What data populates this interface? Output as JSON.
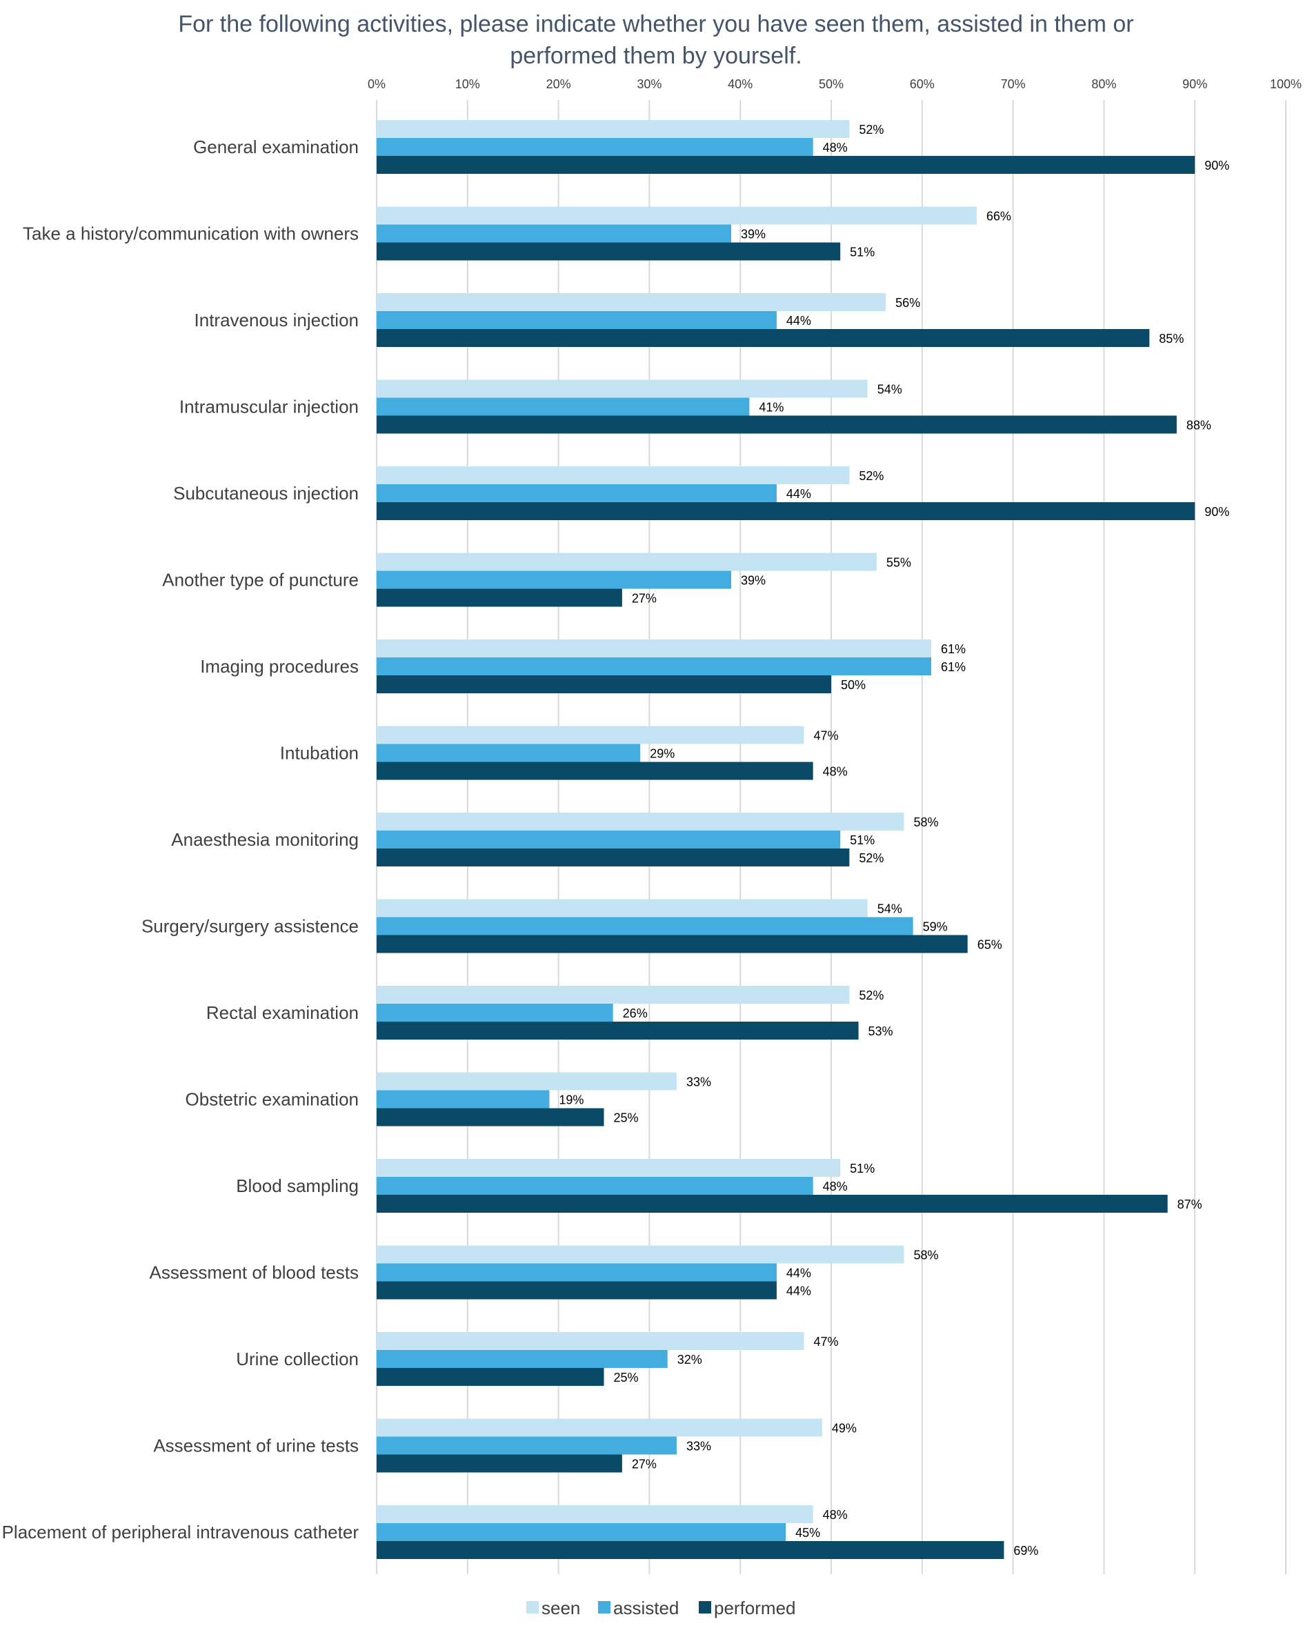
{
  "chart_data": {
    "type": "bar",
    "orientation": "horizontal",
    "title_lines": [
      "For the following activities, please indicate whether you have seen them, assisted in them or",
      "performed them by yourself."
    ],
    "xlabel": "",
    "ylabel": "",
    "xlim": [
      0,
      100
    ],
    "tick_values": [
      0,
      10,
      20,
      30,
      40,
      50,
      60,
      70,
      80,
      90,
      100
    ],
    "tick_labels": [
      "0%",
      "10%",
      "20%",
      "30%",
      "40%",
      "50%",
      "60%",
      "70%",
      "80%",
      "90%",
      "100%"
    ],
    "value_suffix": "%",
    "grid": true,
    "legend_position": "bottom",
    "categories": [
      "General examination",
      "Take a history/communication with owners",
      "Intravenous injection",
      "Intramuscular injection",
      "Subcutaneous injection",
      "Another type of puncture",
      "Imaging procedures",
      "Intubation",
      "Anaesthesia monitoring",
      "Surgery/surgery assistence",
      "Rectal examination",
      "Obstetric examination",
      "Blood sampling",
      "Assessment of blood tests",
      "Urine collection",
      "Assessment of urine tests",
      "Placement of peripheral intravenous catheter"
    ],
    "series": [
      {
        "name": "seen",
        "color": "#c4e4f4",
        "values": [
          52,
          66,
          56,
          54,
          52,
          55,
          61,
          47,
          58,
          54,
          52,
          33,
          51,
          58,
          47,
          49,
          48
        ]
      },
      {
        "name": "assisted",
        "color": "#44ade0",
        "values": [
          48,
          39,
          44,
          41,
          44,
          39,
          61,
          29,
          51,
          59,
          26,
          19,
          48,
          44,
          32,
          33,
          45
        ]
      },
      {
        "name": "performed",
        "color": "#0b4a66",
        "values": [
          90,
          51,
          85,
          88,
          90,
          27,
          50,
          48,
          52,
          65,
          53,
          25,
          87,
          44,
          25,
          27,
          69
        ]
      }
    ]
  }
}
